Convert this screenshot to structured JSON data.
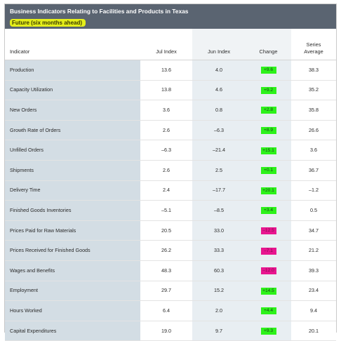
{
  "header": {
    "title": "Business Indicators Relating to Facilities and Products in Texas",
    "subtitle": "Future (six months ahead)"
  },
  "columns": {
    "indicator": "Indicator",
    "jul": "Jul Index",
    "jun": "Jun Index",
    "change": "Change",
    "avg_line1": "Series",
    "avg_line2": "Average"
  },
  "colors": {
    "positive": "#2df21a",
    "negative": "#e8158f"
  },
  "rows": [
    {
      "name": "Production",
      "jul": "13.6",
      "jun": "4.0",
      "change": "+9.6",
      "sign": "pos",
      "avg": "38.3"
    },
    {
      "name": "Capacity Utilization",
      "jul": "13.8",
      "jun": "4.6",
      "change": "+9.2",
      "sign": "pos",
      "avg": "35.2"
    },
    {
      "name": "New Orders",
      "jul": "3.6",
      "jun": "0.8",
      "change": "+2.8",
      "sign": "pos",
      "avg": "35.8"
    },
    {
      "name": "Growth Rate of Orders",
      "jul": "2.6",
      "jun": "–6.3",
      "change": "+8.9",
      "sign": "pos",
      "avg": "26.6"
    },
    {
      "name": "Unfilled Orders",
      "jul": "–6.3",
      "jun": "–21.4",
      "change": "+15.1",
      "sign": "pos",
      "avg": "3.6"
    },
    {
      "name": "Shipments",
      "jul": "2.6",
      "jun": "2.5",
      "change": "+0.1",
      "sign": "pos",
      "avg": "36.7"
    },
    {
      "name": "Delivery Time",
      "jul": "2.4",
      "jun": "–17.7",
      "change": "+20.1",
      "sign": "pos",
      "avg": "–1.2"
    },
    {
      "name": "Finished Goods Inventories",
      "jul": "–5.1",
      "jun": "–8.5",
      "change": "+3.4",
      "sign": "pos",
      "avg": "0.5"
    },
    {
      "name": "Prices Paid for Raw Materials",
      "jul": "20.5",
      "jun": "33.0",
      "change": "–12.5",
      "sign": "neg",
      "avg": "34.7"
    },
    {
      "name": "Prices Received for Finished Goods",
      "jul": "26.2",
      "jun": "33.3",
      "change": "–7.1",
      "sign": "neg",
      "avg": "21.2"
    },
    {
      "name": "Wages and Benefits",
      "jul": "48.3",
      "jun": "60.3",
      "change": "–12.0",
      "sign": "neg",
      "avg": "39.3"
    },
    {
      "name": "Employment",
      "jul": "29.7",
      "jun": "15.2",
      "change": "+14.5",
      "sign": "pos",
      "avg": "23.4"
    },
    {
      "name": "Hours Worked",
      "jul": "6.4",
      "jun": "2.0",
      "change": "+4.4",
      "sign": "pos",
      "avg": "9.4"
    },
    {
      "name": "Capital Expenditures",
      "jul": "19.0",
      "jun": "9.7",
      "change": "+9.3",
      "sign": "pos",
      "avg": "20.1"
    }
  ]
}
